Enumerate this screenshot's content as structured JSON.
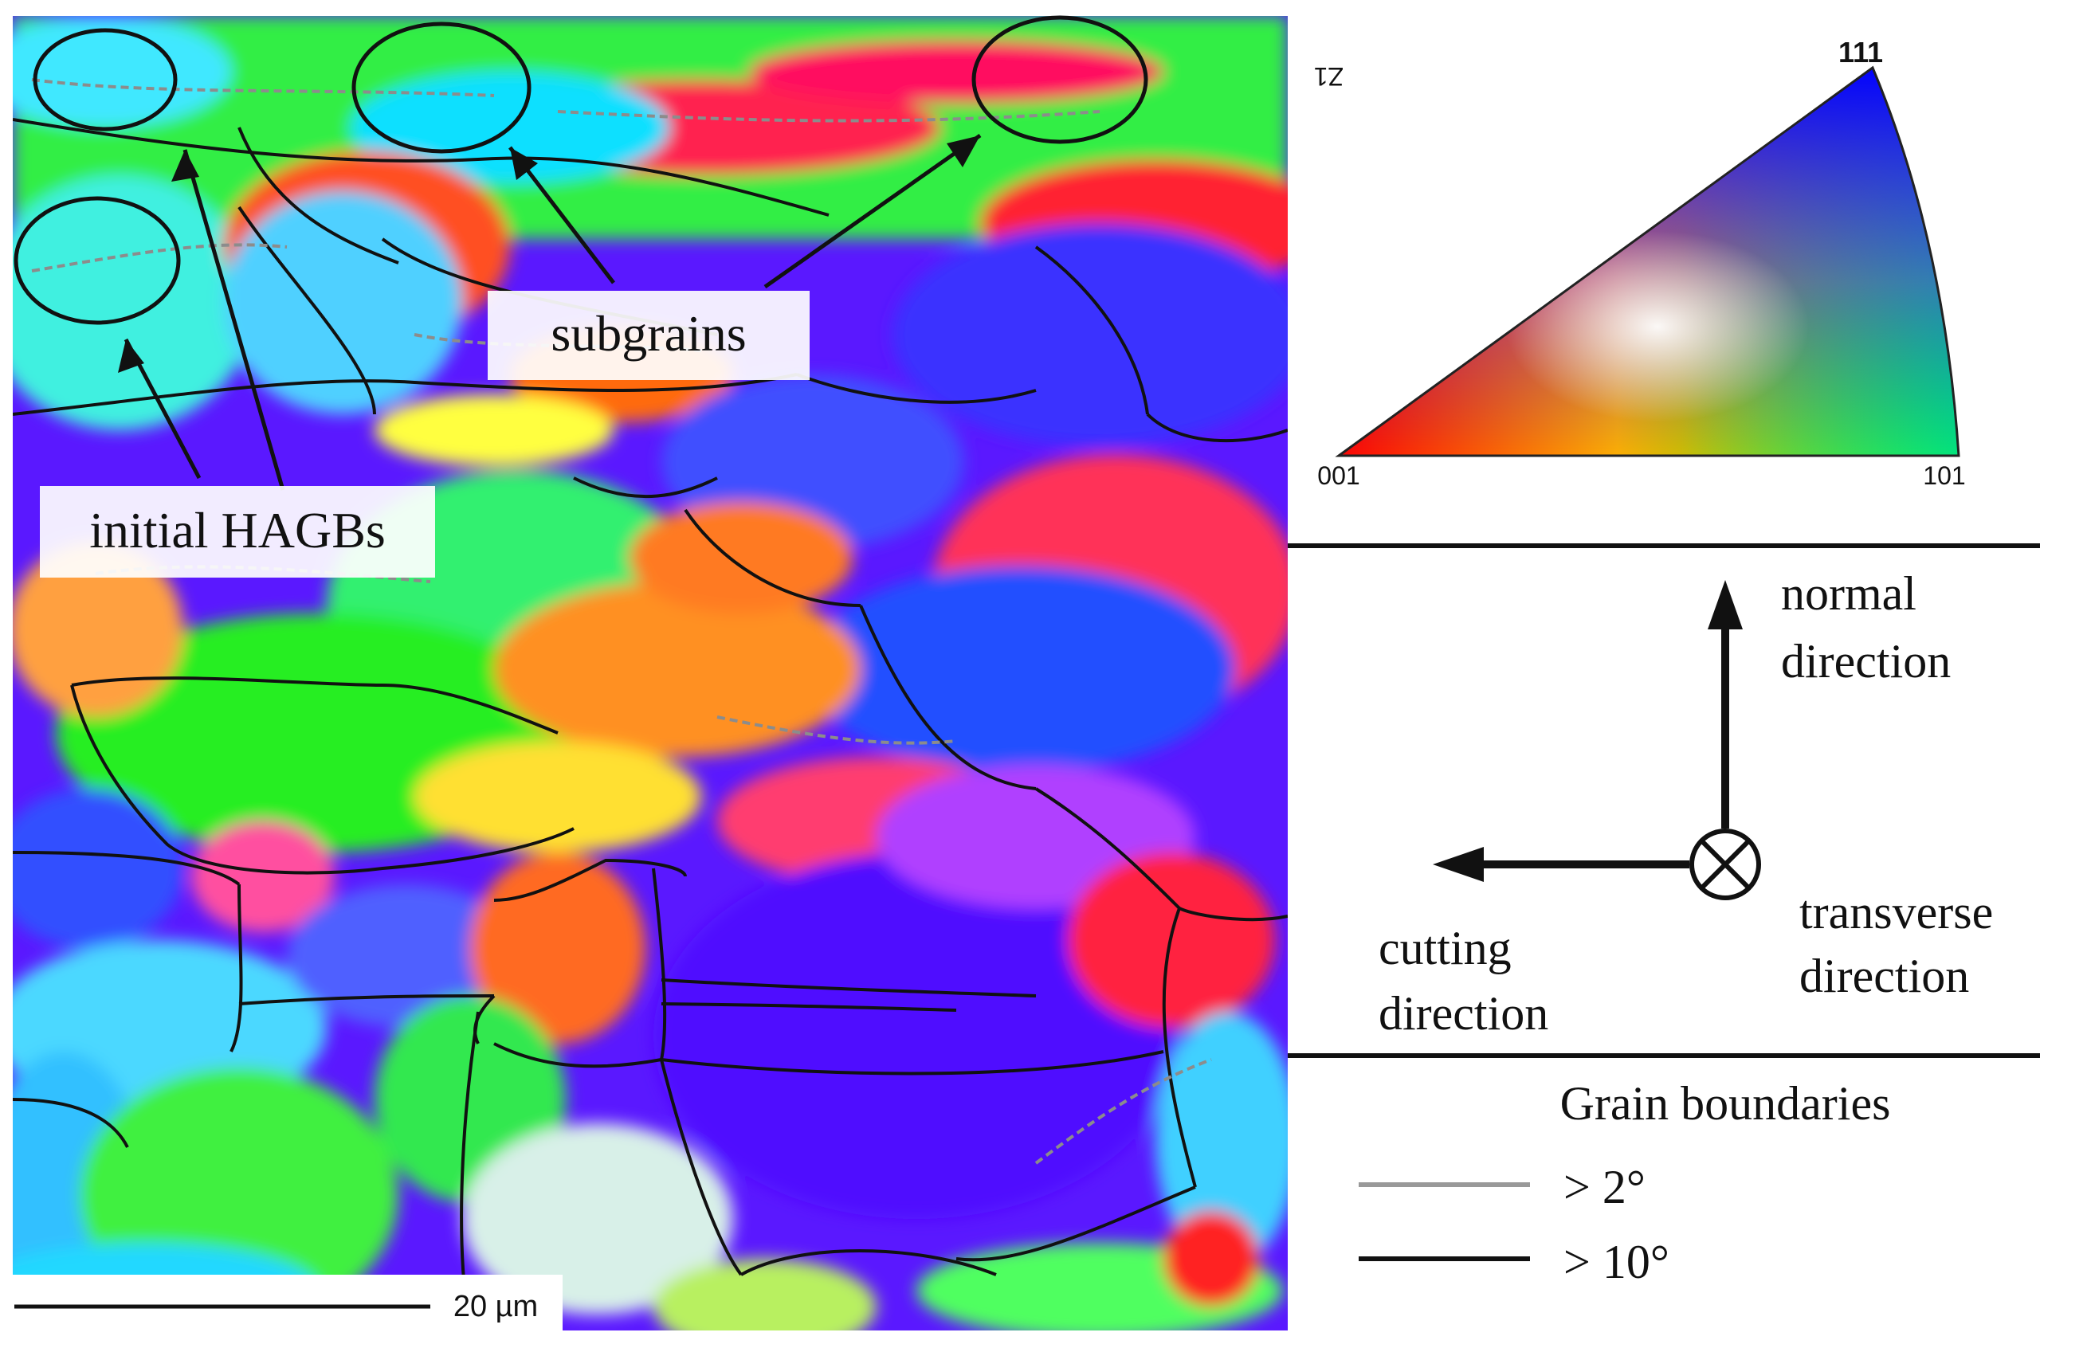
{
  "ebsd_map": {
    "annotations": {
      "subgrains": "subgrains",
      "initial_hagbs": "initial HAGBs"
    },
    "scale_bar": {
      "label": "20 µm"
    }
  },
  "ipf_key": {
    "axis_label": "Z1",
    "corners": {
      "top": "111",
      "left": "001",
      "right": "101"
    }
  },
  "directions": {
    "normal": [
      "normal",
      "direction"
    ],
    "cutting": [
      "cutting",
      "direction"
    ],
    "transverse": [
      "transverse",
      "direction"
    ]
  },
  "grain_boundaries": {
    "title": "Grain boundaries",
    "entries": [
      {
        "label": "> 2°",
        "color": "#999999"
      },
      {
        "label": "> 10°",
        "color": "#111111"
      }
    ]
  }
}
